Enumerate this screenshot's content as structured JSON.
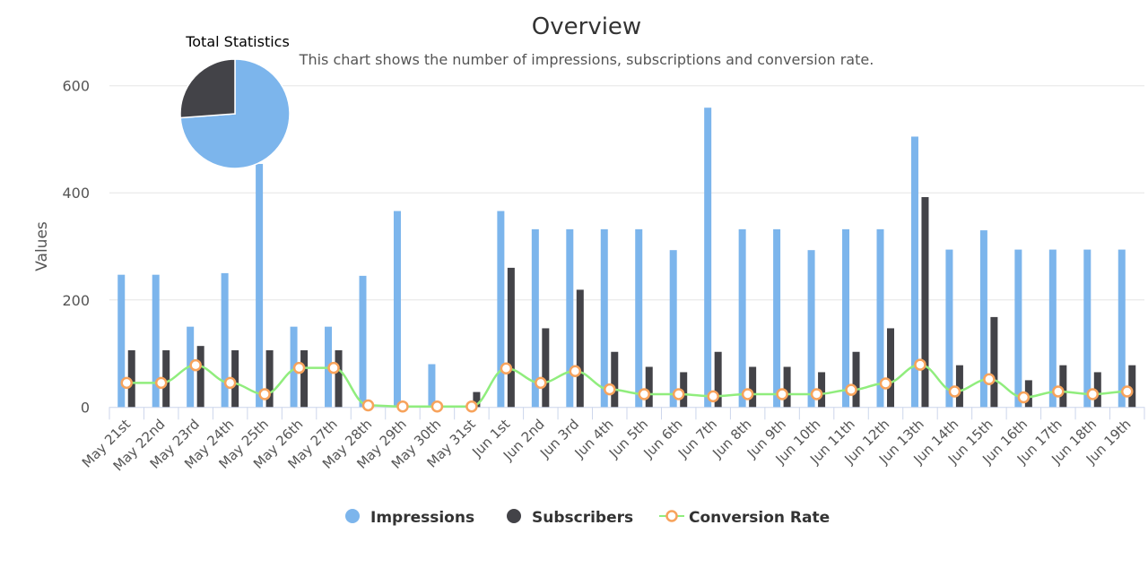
{
  "chart_data": {
    "type": "combo",
    "title": "Overview",
    "subtitle": "This chart shows the number of impressions, subscriptions and conversion rate.",
    "ylabel": "Values",
    "ylim": [
      0,
      600
    ],
    "yticks": [
      0,
      200,
      400,
      600
    ],
    "grid": true,
    "legend_position": "bottom",
    "categories": [
      "May 21st",
      "May 22nd",
      "May 23rd",
      "May 24th",
      "May 25th",
      "May 26th",
      "May 27th",
      "May 28th",
      "May 29th",
      "May 30th",
      "May 31st",
      "Jun 1st",
      "Jun 2nd",
      "Jun 3rd",
      "Jun 4th",
      "Jun 5th",
      "Jun 6th",
      "Jun 7th",
      "Jun 8th",
      "Jun 9th",
      "Jun 10th",
      "Jun 11th",
      "Jun 12th",
      "Jun 13th",
      "Jun 14th",
      "Jun 15th",
      "Jun 16th",
      "Jun 17th",
      "Jun 18th",
      "Jun 19th"
    ],
    "series": [
      {
        "name": "Impressions",
        "type": "bar",
        "color": "#7cb5ec",
        "values": [
          247,
          247,
          150,
          250,
          454,
          150,
          150,
          245,
          366,
          80,
          0,
          366,
          332,
          332,
          332,
          332,
          293,
          559,
          332,
          332,
          293,
          332,
          332,
          505,
          294,
          330,
          294,
          294,
          294,
          294
        ]
      },
      {
        "name": "Subscribers",
        "type": "bar",
        "color": "#434348",
        "values": [
          106,
          106,
          114,
          106,
          106,
          106,
          106,
          0,
          0,
          0,
          28,
          260,
          147,
          219,
          103,
          75,
          65,
          103,
          75,
          75,
          65,
          103,
          147,
          392,
          78,
          168,
          50,
          78,
          65,
          78
        ]
      },
      {
        "name": "Conversion Rate",
        "type": "spline",
        "color": "#90ed7d",
        "marker_color": "#f7a35c",
        "values": [
          45,
          45,
          78,
          45,
          24,
          73,
          73,
          3,
          1,
          1,
          1,
          72,
          45,
          67,
          33,
          24,
          24,
          20,
          24,
          24,
          24,
          32,
          44,
          79,
          29,
          52,
          18,
          29,
          24,
          29
        ]
      }
    ],
    "pie": {
      "title": "Total Statistics",
      "slices": [
        {
          "name": "Impressions",
          "value": 8811,
          "color": "#7cb5ec"
        },
        {
          "name": "Subscribers",
          "value": 3124,
          "color": "#434348"
        }
      ]
    }
  }
}
